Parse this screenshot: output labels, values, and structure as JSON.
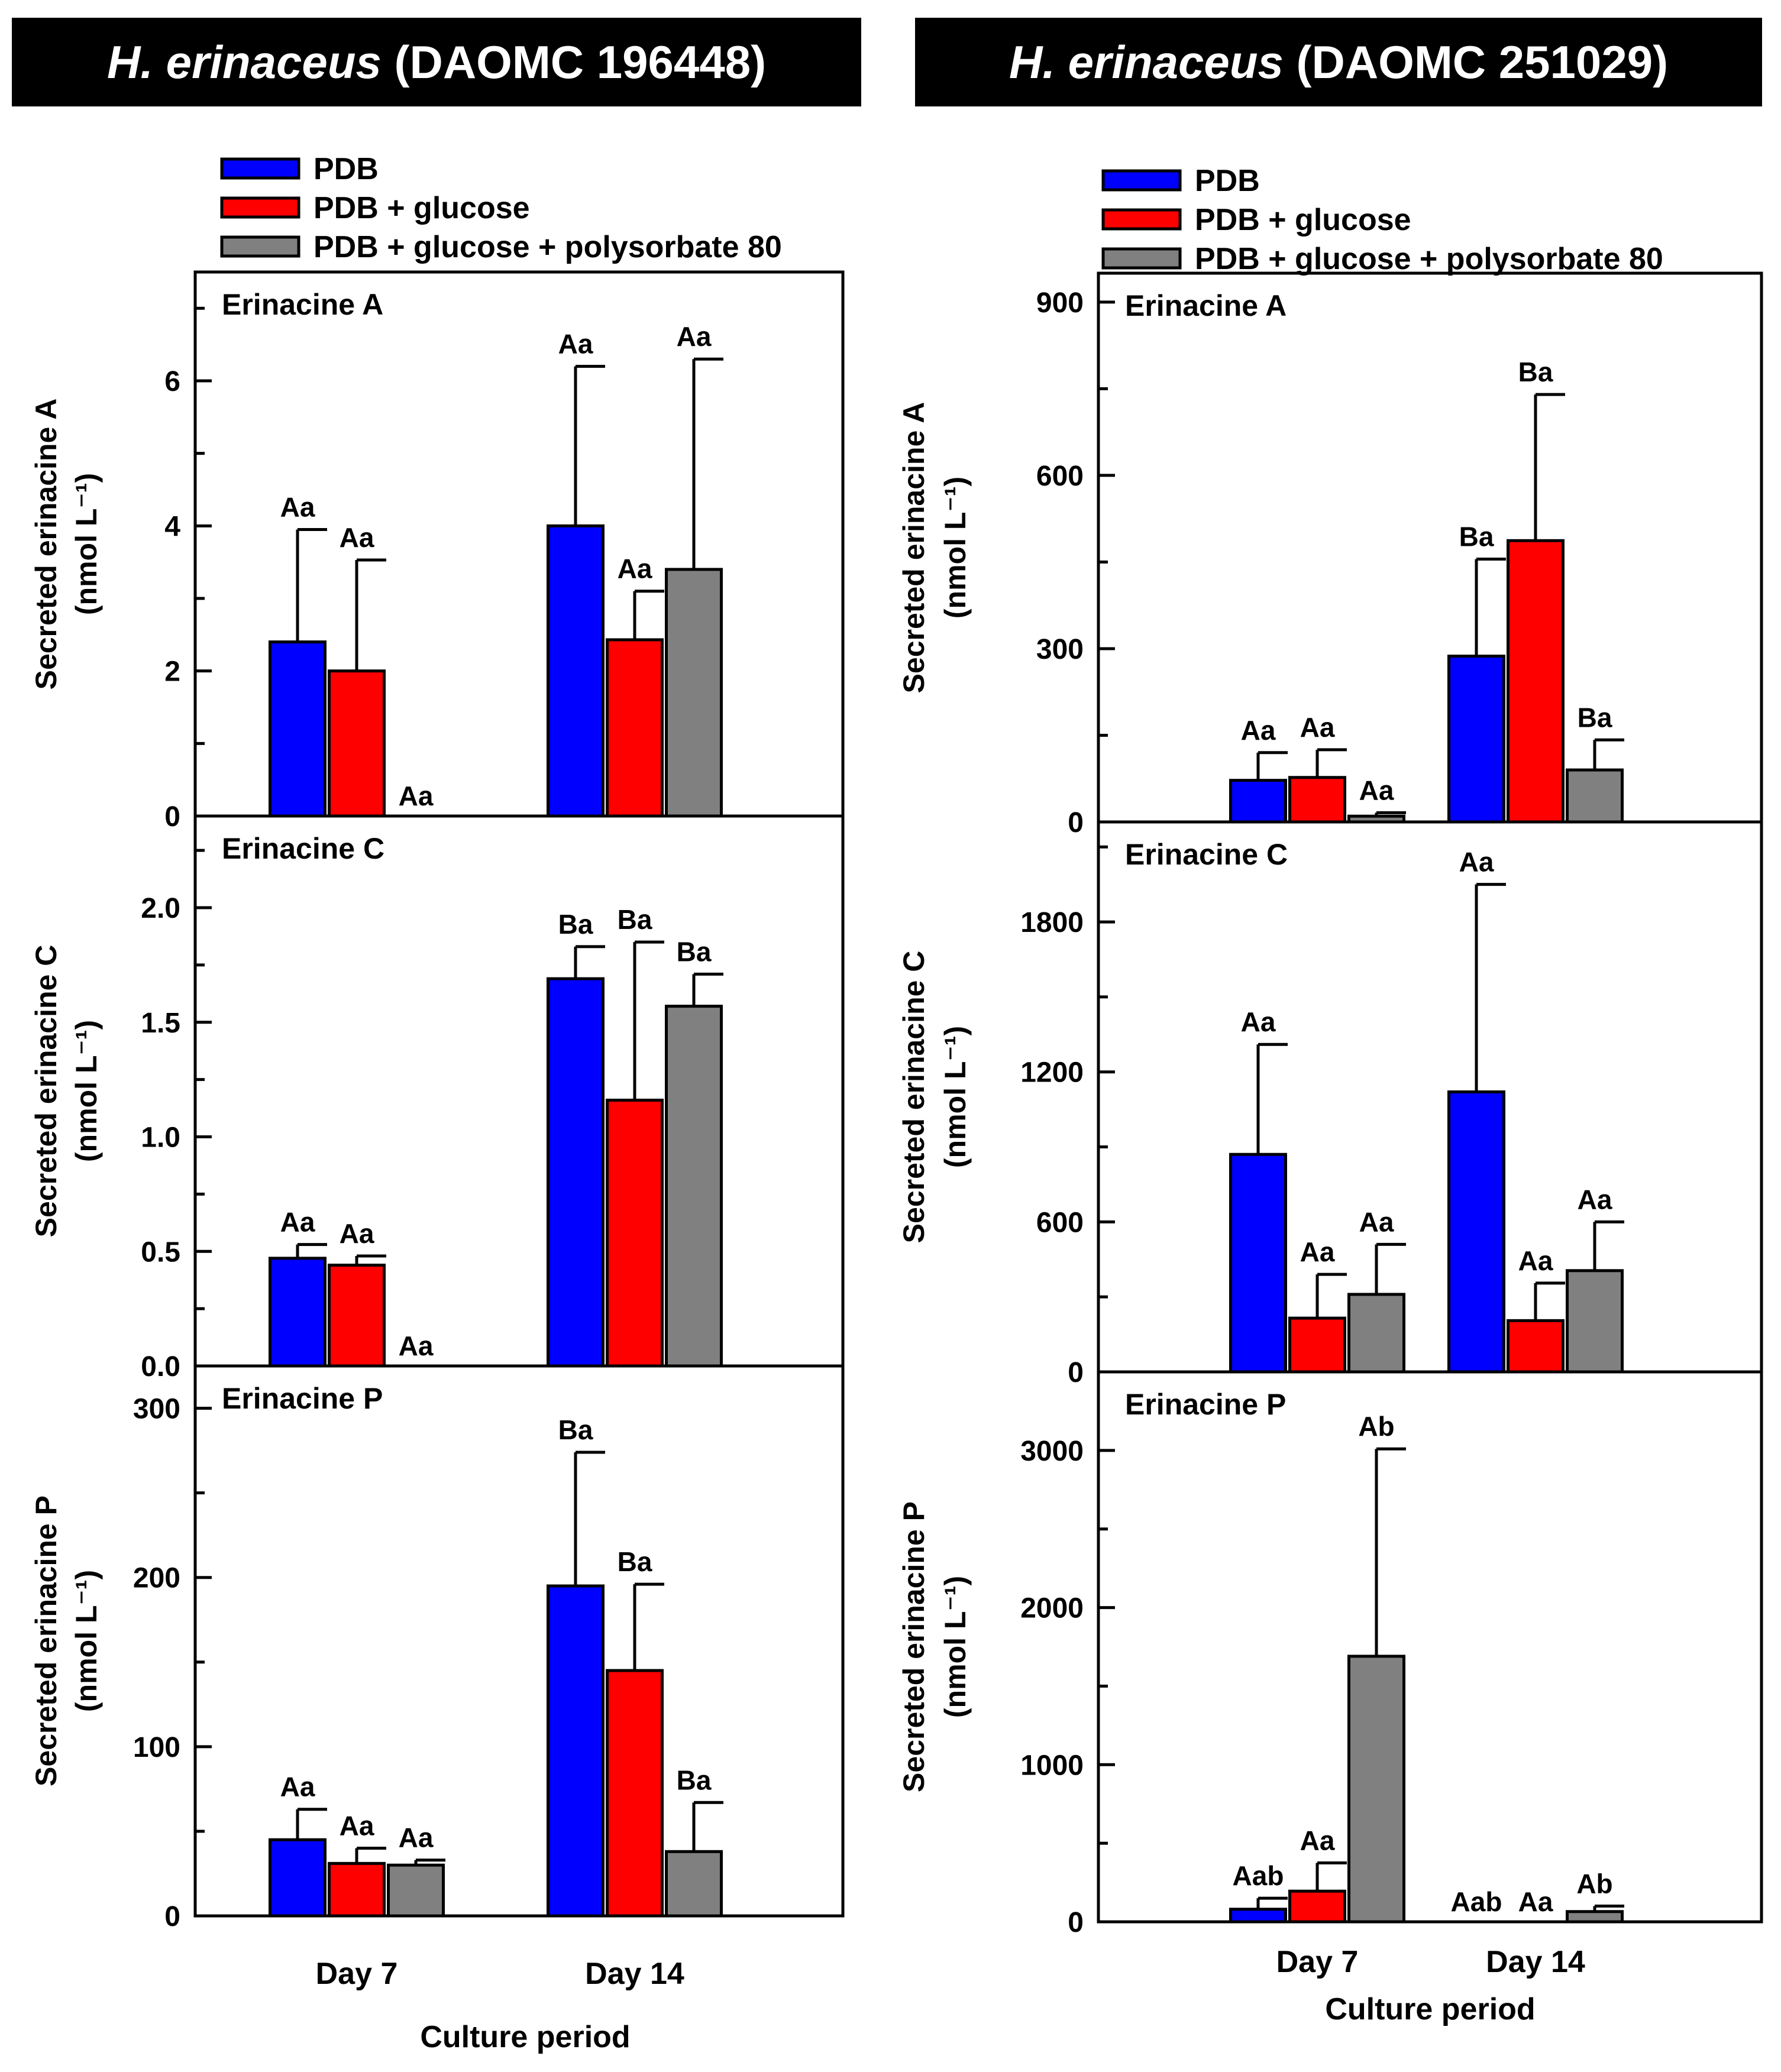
{
  "left_title": {
    "species": "H. erinaceus",
    "strain": " (DAOMC 196448)"
  },
  "right_title": {
    "species": "H. erinaceus",
    "strain": " (DAOMC 251029)"
  },
  "legend": [
    "PDB",
    "PDB + glucose",
    "PDB + glucose + polysorbate 80"
  ],
  "colors": {
    "PDB": "#0000ff",
    "PDB + glucose": "#ff0000",
    "PDB + glucose + polysorbate 80": "#808080"
  },
  "chart_data": [
    {
      "type": "bar",
      "column": "left",
      "row": 0,
      "title": "Erinacine A",
      "ylabel": "Secreted erinacine A",
      "yunit": "(nmol L⁻¹)",
      "ylim": [
        0,
        7.5
      ],
      "yticks": [
        0,
        2,
        4,
        6
      ],
      "ytick_labels": [
        "0",
        "2",
        "4",
        "6"
      ],
      "yminor": [
        1,
        3,
        5,
        7
      ],
      "categories": [
        "Day 7",
        "Day 14"
      ],
      "series": [
        {
          "name": "PDB",
          "values": [
            2.4,
            4.0
          ],
          "errors": [
            1.55,
            2.2
          ],
          "labels": [
            "Aa",
            "Aa"
          ]
        },
        {
          "name": "PDB + glucose",
          "values": [
            2.0,
            2.43
          ],
          "errors": [
            1.53,
            0.67
          ],
          "labels": [
            "Aa",
            "Aa"
          ]
        },
        {
          "name": "PDB + glucose + polysorbate 80",
          "values": [
            0,
            3.4
          ],
          "errors": [
            0,
            2.9
          ],
          "labels": [
            "Aa",
            "Aa"
          ]
        }
      ]
    },
    {
      "type": "bar",
      "column": "left",
      "row": 1,
      "title": "Erinacine C",
      "ylabel": "Secreted erinacine C",
      "yunit": "(nmol L⁻¹)",
      "ylim": [
        0,
        2.4
      ],
      "yticks": [
        0,
        0.5,
        1.0,
        1.5,
        2.0
      ],
      "ytick_labels": [
        "0.0",
        "0.5",
        "1.0",
        "1.5",
        "2.0"
      ],
      "yminor": [
        0.25,
        0.75,
        1.25,
        1.75,
        2.25
      ],
      "categories": [
        "Day 7",
        "Day 14"
      ],
      "series": [
        {
          "name": "PDB",
          "values": [
            0.47,
            1.69
          ],
          "errors": [
            0.06,
            0.14
          ],
          "labels": [
            "Aa",
            "Ba"
          ]
        },
        {
          "name": "PDB + glucose",
          "values": [
            0.44,
            1.16
          ],
          "errors": [
            0.04,
            0.69
          ],
          "labels": [
            "Aa",
            "Ba"
          ]
        },
        {
          "name": "PDB + glucose + polysorbate 80",
          "values": [
            0,
            1.57
          ],
          "errors": [
            0,
            0.14
          ],
          "labels": [
            "Aa",
            "Ba"
          ]
        }
      ]
    },
    {
      "type": "bar",
      "column": "left",
      "row": 2,
      "title": "Erinacine P",
      "ylabel": "Secreted erinacine P",
      "yunit": "(nmol L⁻¹)",
      "ylim": [
        0,
        325
      ],
      "yticks": [
        0,
        100,
        200,
        300
      ],
      "ytick_labels": [
        "0",
        "100",
        "200",
        "300"
      ],
      "yminor": [
        50,
        150,
        250
      ],
      "categories": [
        "Day 7",
        "Day 14"
      ],
      "series": [
        {
          "name": "PDB",
          "values": [
            45,
            195
          ],
          "errors": [
            18,
            79
          ],
          "labels": [
            "Aa",
            "Ba"
          ]
        },
        {
          "name": "PDB + glucose",
          "values": [
            31,
            145
          ],
          "errors": [
            9,
            51
          ],
          "labels": [
            "Aa",
            "Ba"
          ]
        },
        {
          "name": "PDB + glucose + polysorbate 80",
          "values": [
            30,
            38
          ],
          "errors": [
            3,
            29
          ],
          "labels": [
            "Aa",
            "Ba"
          ]
        }
      ]
    },
    {
      "type": "bar",
      "column": "right",
      "row": 0,
      "title": "Erinacine A",
      "ylabel": "Secreted erinacine A",
      "yunit": "(nmol L⁻¹)",
      "ylim": [
        0,
        950
      ],
      "yticks": [
        0,
        300,
        600,
        900
      ],
      "ytick_labels": [
        "0",
        "300",
        "600",
        "900"
      ],
      "yminor": [
        150,
        450,
        750
      ],
      "categories": [
        "Day 7",
        "Day 14"
      ],
      "series": [
        {
          "name": "PDB",
          "values": [
            72,
            287
          ],
          "errors": [
            48,
            168
          ],
          "labels": [
            "Aa",
            "Ba"
          ]
        },
        {
          "name": "PDB + glucose",
          "values": [
            77,
            487
          ],
          "errors": [
            48,
            253
          ],
          "labels": [
            "Aa",
            "Ba"
          ]
        },
        {
          "name": "PDB + glucose + polysorbate 80",
          "values": [
            10,
            90
          ],
          "errors": [
            6,
            52
          ],
          "labels": [
            "Aa",
            "Ba"
          ]
        }
      ]
    },
    {
      "type": "bar",
      "column": "right",
      "row": 1,
      "title": "Erinacine C",
      "ylabel": "Secreted erinacine C",
      "yunit": "(nmol L⁻¹)",
      "ylim": [
        0,
        2200
      ],
      "yticks": [
        0,
        600,
        1200,
        1800
      ],
      "ytick_labels": [
        "0",
        "600",
        "1200",
        "1800"
      ],
      "yminor": [
        300,
        900,
        1500,
        2100
      ],
      "categories": [
        "Day 7",
        "Day 14"
      ],
      "series": [
        {
          "name": "PDB",
          "values": [
            870,
            1120
          ],
          "errors": [
            440,
            830
          ],
          "labels": [
            "Aa",
            "Aa"
          ]
        },
        {
          "name": "PDB + glucose",
          "values": [
            215,
            205
          ],
          "errors": [
            175,
            150
          ],
          "labels": [
            "Aa",
            "Aa"
          ]
        },
        {
          "name": "PDB + glucose + polysorbate 80",
          "values": [
            310,
            405
          ],
          "errors": [
            200,
            195
          ],
          "labels": [
            "Aa",
            "Aa"
          ]
        }
      ]
    },
    {
      "type": "bar",
      "column": "right",
      "row": 2,
      "title": "Erinacine P",
      "ylabel": "Secreted erinacine P",
      "yunit": "(nmol L⁻¹)",
      "ylim": [
        0,
        3500
      ],
      "yticks": [
        0,
        1000,
        2000,
        3000
      ],
      "ytick_labels": [
        "0",
        "1000",
        "2000",
        "3000"
      ],
      "yminor": [
        500,
        1500,
        2500
      ],
      "categories": [
        "Day 7",
        "Day 14"
      ],
      "series": [
        {
          "name": "PDB",
          "values": [
            80,
            0
          ],
          "errors": [
            70,
            0
          ],
          "labels": [
            "Aab",
            "Aab"
          ]
        },
        {
          "name": "PDB + glucose",
          "values": [
            195,
            0
          ],
          "errors": [
            180,
            0
          ],
          "labels": [
            "Aa",
            "Aa"
          ]
        },
        {
          "name": "PDB + glucose + polysorbate 80",
          "values": [
            1690,
            65
          ],
          "errors": [
            1320,
            35
          ],
          "labels": [
            "Ab",
            "Ab"
          ]
        }
      ]
    }
  ],
  "xlabel": "Culture period"
}
